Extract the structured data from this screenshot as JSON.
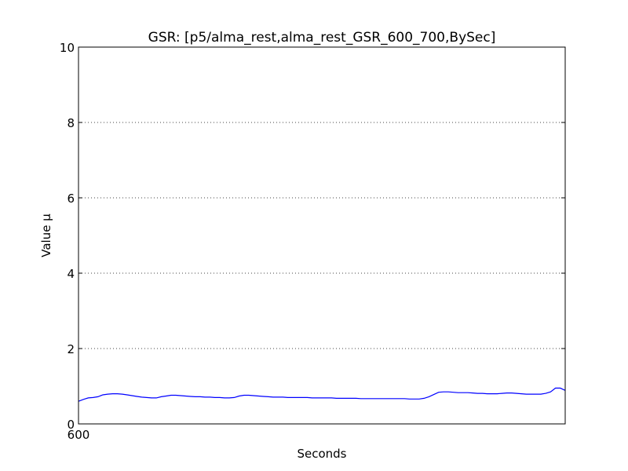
{
  "chart_data": {
    "type": "line",
    "title": "GSR: [p5/alma_rest,alma_rest_GSR_600_700,BySec]",
    "xlabel": "Seconds",
    "ylabel": "Value µ",
    "xlim": [
      600,
      700
    ],
    "ylim": [
      0,
      10
    ],
    "x_ticks": [
      "600"
    ],
    "y_ticks": [
      "0",
      "2",
      "4",
      "6",
      "8",
      "10"
    ],
    "grid": "horizontal dotted",
    "colors": {
      "line": "#0000ff",
      "grid": "#444444",
      "axes": "#000000",
      "background": "#ffffff"
    },
    "series": [
      {
        "x": [
          600,
          601,
          602,
          603,
          604,
          605,
          606,
          607,
          608,
          609,
          610,
          611,
          612,
          613,
          614,
          615,
          616,
          617,
          618,
          619,
          620,
          621,
          622,
          623,
          624,
          625,
          626,
          627,
          628,
          629,
          630,
          631,
          632,
          633,
          634,
          635,
          636,
          637,
          638,
          639,
          640,
          641,
          642,
          643,
          644,
          645,
          646,
          647,
          648,
          649,
          650,
          651,
          652,
          653,
          654,
          655,
          656,
          657,
          658,
          659,
          660,
          661,
          662,
          663,
          664,
          665,
          666,
          667,
          668,
          669,
          670,
          671,
          672,
          673,
          674,
          675,
          676,
          677,
          678,
          679,
          680,
          681,
          682,
          683,
          684,
          685,
          686,
          687,
          688,
          689,
          690,
          691,
          692,
          693,
          694,
          695,
          696,
          697,
          698,
          699,
          700
        ],
        "values": [
          0.6,
          0.65,
          0.69,
          0.7,
          0.72,
          0.77,
          0.79,
          0.8,
          0.8,
          0.79,
          0.77,
          0.75,
          0.73,
          0.71,
          0.7,
          0.69,
          0.69,
          0.72,
          0.74,
          0.76,
          0.76,
          0.75,
          0.74,
          0.73,
          0.72,
          0.72,
          0.71,
          0.71,
          0.7,
          0.7,
          0.69,
          0.69,
          0.7,
          0.74,
          0.76,
          0.76,
          0.75,
          0.74,
          0.73,
          0.72,
          0.71,
          0.71,
          0.71,
          0.7,
          0.7,
          0.7,
          0.7,
          0.7,
          0.69,
          0.69,
          0.69,
          0.69,
          0.69,
          0.68,
          0.68,
          0.68,
          0.68,
          0.68,
          0.67,
          0.67,
          0.67,
          0.67,
          0.67,
          0.67,
          0.67,
          0.67,
          0.67,
          0.67,
          0.66,
          0.66,
          0.66,
          0.68,
          0.72,
          0.78,
          0.84,
          0.85,
          0.85,
          0.84,
          0.83,
          0.83,
          0.83,
          0.82,
          0.81,
          0.81,
          0.8,
          0.8,
          0.8,
          0.81,
          0.82,
          0.82,
          0.81,
          0.8,
          0.79,
          0.79,
          0.79,
          0.79,
          0.81,
          0.85,
          0.95,
          0.95,
          0.89
        ]
      }
    ]
  }
}
